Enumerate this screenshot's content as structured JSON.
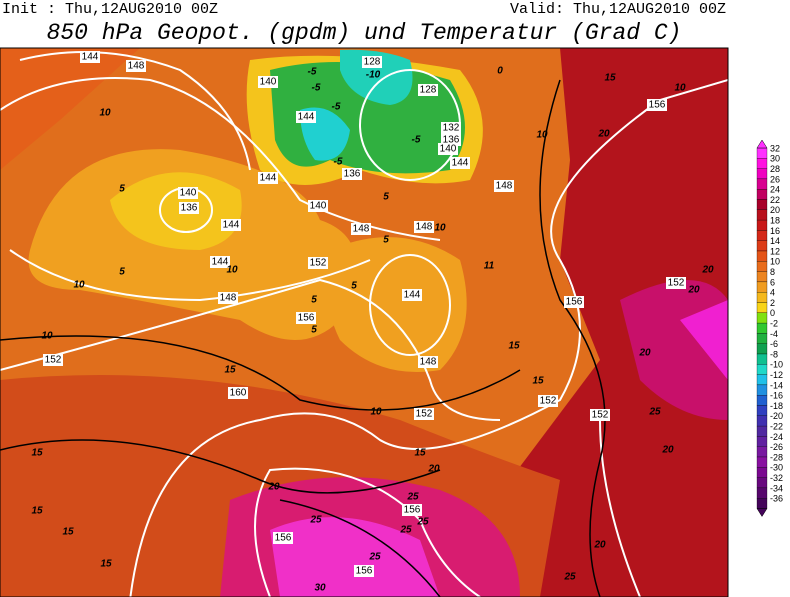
{
  "header": {
    "init": "Init : Thu,12AUG2010 00Z",
    "valid": "Valid: Thu,12AUG2010 00Z",
    "title": "850 hPa Geopot. (gpdm) und Temperatur (Grad C)"
  },
  "colorbar": {
    "labels": [
      32,
      30,
      28,
      26,
      24,
      22,
      20,
      18,
      16,
      14,
      12,
      10,
      8,
      6,
      4,
      2,
      0,
      -2,
      -4,
      -6,
      -8,
      -10,
      -12,
      -14,
      -16,
      -18,
      -20,
      -22,
      -24,
      -26,
      -28,
      -30,
      -32,
      -34,
      -36
    ],
    "colors": [
      "#ff30ff",
      "#ff10e0",
      "#f000c0",
      "#d80090",
      "#c00060",
      "#a8002a",
      "#b8101c",
      "#c81818",
      "#d42818",
      "#dc3c18",
      "#e45418",
      "#e86c1c",
      "#ec8420",
      "#f09c20",
      "#f4b81c",
      "#f8d418",
      "#80e010",
      "#30c830",
      "#20b040",
      "#10a050",
      "#10c090",
      "#20d8c8",
      "#20c0e8",
      "#2090e0",
      "#2060d0",
      "#3040c0",
      "#4030b0",
      "#5028a0",
      "#6020a0",
      "#7818a0",
      "#8810a0",
      "#7a0890",
      "#68087e",
      "#56066c",
      "#44045a"
    ]
  },
  "geopotential_labels": [
    144,
    148,
    140,
    128,
    128,
    144,
    132,
    136,
    140,
    144,
    148,
    144,
    136,
    140,
    136,
    144,
    140,
    148,
    148,
    144,
    152,
    148,
    156,
    144,
    148,
    152,
    160,
    152,
    152,
    152,
    156,
    156,
    156,
    156,
    156,
    152
  ],
  "temperature_labels": [
    -5,
    -10,
    -5,
    -5,
    -5,
    -5,
    0,
    10,
    5,
    5,
    10,
    10,
    10,
    5,
    5,
    5,
    5,
    5,
    10,
    15,
    10,
    15,
    15,
    15,
    20,
    15,
    15,
    15,
    15,
    20,
    25,
    25,
    25,
    25,
    25,
    30,
    20,
    25,
    20,
    25,
    20,
    20,
    20,
    20,
    10,
    15,
    10,
    11
  ]
}
